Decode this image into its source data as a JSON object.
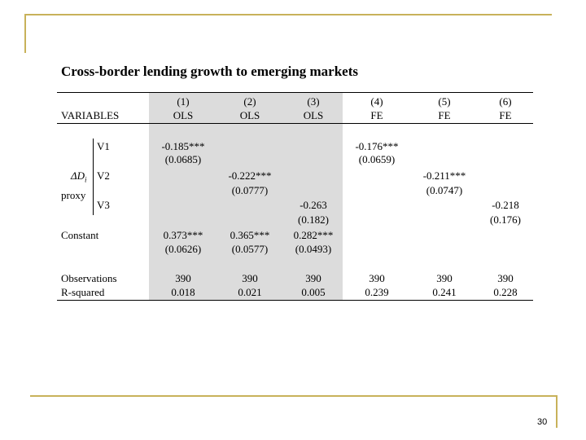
{
  "slide": {
    "title": "Cross-border lending growth to emerging markets",
    "page_number": "30"
  },
  "table": {
    "variables_header": "VARIABLES",
    "columns": [
      {
        "num": "(1)",
        "method": "OLS"
      },
      {
        "num": "(2)",
        "method": "OLS"
      },
      {
        "num": "(3)",
        "method": "OLS"
      },
      {
        "num": "(4)",
        "method": "FE"
      },
      {
        "num": "(5)",
        "method": "FE"
      },
      {
        "num": "(6)",
        "method": "FE"
      }
    ],
    "delta_label": "ΔD",
    "delta_sub": "i",
    "proxy_label": "proxy",
    "proxy_rows": [
      "V1",
      "V2",
      "V3"
    ],
    "coefficients": {
      "v1_col1": "-0.185***",
      "v1_col1_se": "(0.0685)",
      "v1_col4": "-0.176***",
      "v1_col4_se": "(0.0659)",
      "v2_col2": "-0.222***",
      "v2_col2_se": "(0.0777)",
      "v2_col5": "-0.211***",
      "v2_col5_se": "(0.0747)",
      "v3_col3": "-0.263",
      "v3_col3_se": "(0.182)",
      "v3_col6": "-0.218",
      "v3_col6_se": "(0.176)"
    },
    "constant_label": "Constant",
    "constant": [
      {
        "coef": "0.373***",
        "se": "(0.0626)"
      },
      {
        "coef": "0.365***",
        "se": "(0.0577)"
      },
      {
        "coef": "0.282***",
        "se": "(0.0493)"
      }
    ],
    "observations_label": "Observations",
    "observations": [
      "390",
      "390",
      "390",
      "390",
      "390",
      "390"
    ],
    "rsquared_label": "R-squared",
    "rsquared": [
      "0.018",
      "0.021",
      "0.005",
      "0.239",
      "0.241",
      "0.228"
    ]
  },
  "colors": {
    "frame_line": "#c8b25a",
    "ols_shade": "#dcdcdc"
  }
}
